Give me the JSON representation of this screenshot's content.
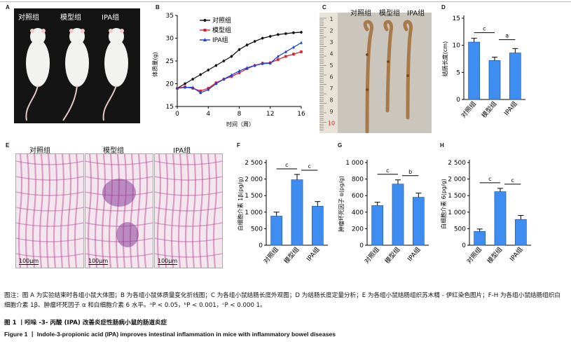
{
  "panels": {
    "a": {
      "letter": "A",
      "groups": [
        "对照组",
        "模型组",
        "IPA组"
      ]
    },
    "b": {
      "letter": "B",
      "xlabel": "时间（周）",
      "ylabel": "体质量(g)",
      "legend": [
        "对照组",
        "模型组",
        "IPA组"
      ],
      "xticks": [
        "0",
        "4",
        "8",
        "12",
        "16"
      ],
      "yticks": [
        "15",
        "20",
        "25",
        "30",
        "35"
      ]
    },
    "c": {
      "letter": "C",
      "groups": [
        "对照组",
        "模型组",
        "IPA组"
      ],
      "ruler": [
        "1",
        "2",
        "3",
        "4",
        "5",
        "6",
        "7",
        "8",
        "9",
        "10"
      ]
    },
    "d": {
      "letter": "D",
      "ylabel": "结肠长度(cm)",
      "yticks": [
        "0",
        "5",
        "10",
        "15"
      ],
      "sig": [
        "c",
        "a"
      ],
      "categories": [
        "对照组",
        "模型组",
        "IPA组"
      ]
    },
    "e": {
      "letter": "E",
      "groups": [
        "对照组",
        "模型组",
        "IPA组"
      ],
      "scale": [
        "100μm",
        "100μm",
        "100μm"
      ]
    },
    "f": {
      "letter": "F",
      "ylabel": "白细胞介素 1β(pg/g)",
      "yticks": [
        "0",
        "500",
        "1 000",
        "1 500",
        "2 000",
        "2 500"
      ],
      "sig": [
        "c",
        "c"
      ],
      "categories": [
        "对照组",
        "模型组",
        "IPA组"
      ]
    },
    "g": {
      "letter": "G",
      "ylabel": "肿瘤坏死因子 α(pg/g)",
      "yticks": [
        "0",
        "200",
        "400",
        "600",
        "800",
        "1 000"
      ],
      "sig": [
        "c",
        "b"
      ],
      "categories": [
        "对照组",
        "模型组",
        "IPA组"
      ]
    },
    "h": {
      "letter": "H",
      "ylabel": "白细胞介素 6(pg/g)",
      "yticks": [
        "0",
        "500",
        "1 000",
        "1 500",
        "2 000",
        "2 500"
      ],
      "sig": [
        "c",
        "c"
      ],
      "categories": [
        "对照组",
        "模型组",
        "IPA组"
      ]
    }
  },
  "caption": {
    "note": "图注：图 A 为实验结束时各组小鼠大体图；B 为各组小鼠体质量变化折线图；C 为各组小鼠结肠长度外观图；D 为结肠长度定量分析；E 为各组小鼠结肠组织苏木精 - 伊红染色图片；F-H 为各组小鼠结肠组织白细胞介素 1β、肿瘤坏死因子 α 和白细胞介素 6 水平。ᵃP < 0.05，ᵇP < 0.001，ᶜP < 0.000 1。",
    "figure_cn": "图 1  丨吲哚 -3- 丙酸 (IPA) 改善炎症性肠病小鼠的肠道炎症",
    "figure_en": "Figure 1 丨 Indole-3-propionic acid (IPA) improves intestinal inflammation in mice with inflammatory bowel diseases"
  },
  "colors": {
    "control": "#111111",
    "model": "#e0202a",
    "ipa": "#1f3fd6",
    "bar": "#3d8ef0"
  },
  "chart_data": [
    {
      "type": "line",
      "panel": "B",
      "xlabel": "时间（周）",
      "ylabel": "体质量(g)",
      "xlim": [
        0,
        16
      ],
      "ylim": [
        15,
        35
      ],
      "x": [
        0,
        1,
        2,
        3,
        4,
        5,
        6,
        7,
        8,
        9,
        10,
        11,
        12,
        13,
        14,
        15,
        16
      ],
      "series": [
        {
          "name": "对照组",
          "color": "#111111",
          "values": [
            19,
            20,
            21,
            22,
            23,
            24,
            25,
            26,
            27.5,
            28.5,
            29.3,
            30,
            30.4,
            30.8,
            31,
            31.2,
            31.3
          ]
        },
        {
          "name": "模型组",
          "color": "#e0202a",
          "values": [
            19,
            19.3,
            19,
            18.4,
            19,
            20.2,
            21,
            21.6,
            22.4,
            23.3,
            24,
            24.5,
            24.6,
            25.3,
            26,
            26.5,
            27
          ]
        },
        {
          "name": "IPA组",
          "color": "#1f3fd6",
          "values": [
            19,
            19.2,
            19.2,
            18,
            18.7,
            20,
            21,
            21.9,
            22.8,
            23.5,
            24,
            24.4,
            24.5,
            26,
            27,
            28,
            29
          ]
        }
      ]
    },
    {
      "type": "bar",
      "panel": "D",
      "ylabel": "结肠长度(cm)",
      "ylim": [
        0,
        15
      ],
      "categories": [
        "对照组",
        "模型组",
        "IPA组"
      ],
      "values": [
        10.6,
        7.2,
        8.6
      ],
      "errors": [
        0.7,
        0.6,
        0.8
      ]
    },
    {
      "type": "bar",
      "panel": "F",
      "ylabel": "白细胞介素 1β(pg/g)",
      "ylim": [
        0,
        2500
      ],
      "categories": [
        "对照组",
        "模型组",
        "IPA组"
      ],
      "values": [
        880,
        1980,
        1180
      ],
      "errors": [
        120,
        160,
        140
      ]
    },
    {
      "type": "bar",
      "panel": "G",
      "ylabel": "肿瘤坏死因子 α(pg/g)",
      "ylim": [
        0,
        1000
      ],
      "categories": [
        "对照组",
        "模型组",
        "IPA组"
      ],
      "values": [
        480,
        740,
        580
      ],
      "errors": [
        40,
        50,
        50
      ]
    },
    {
      "type": "bar",
      "panel": "H",
      "ylabel": "白细胞介素 6(pg/g)",
      "ylim": [
        0,
        2500
      ],
      "categories": [
        "对照组",
        "模型组",
        "IPA组"
      ],
      "values": [
        420,
        1620,
        780
      ],
      "errors": [
        70,
        100,
        120
      ]
    }
  ]
}
